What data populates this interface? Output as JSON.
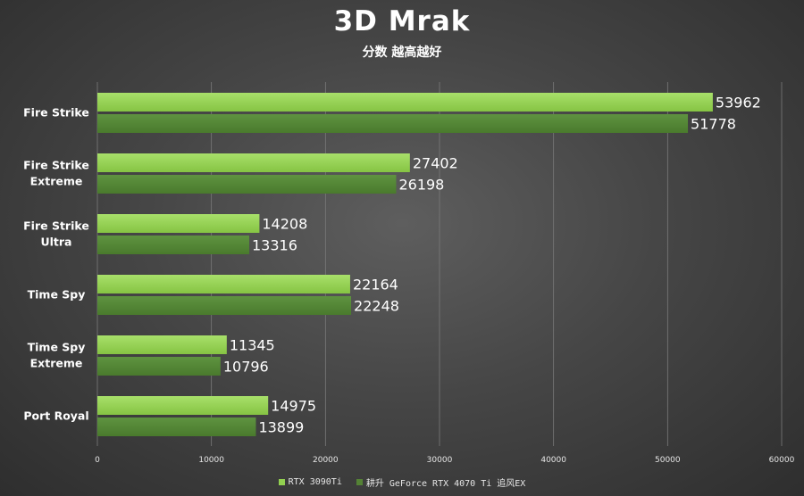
{
  "header": {
    "title": "3D Mrak",
    "subtitle": "分数 越高越好"
  },
  "chart_data": {
    "type": "bar",
    "orientation": "horizontal",
    "title": "3D Mrak",
    "subtitle": "分数 越高越好",
    "categories": [
      "Fire Strike",
      "Fire Strike\nExtreme",
      "Fire Strike\nUltra",
      "Time Spy",
      "Time Spy\nExtreme",
      "Port Royal"
    ],
    "series": [
      {
        "name": "RTX 3090Ti",
        "color": "#92d050",
        "values": [
          53962,
          27402,
          14208,
          22164,
          11345,
          14975
        ]
      },
      {
        "name": "耕升 GeForce RTX 4070 Ti 追风EX",
        "color": "#548235",
        "values": [
          51778,
          26198,
          13316,
          22248,
          10796,
          13899
        ]
      }
    ],
    "xlim": [
      0,
      60000
    ],
    "ticks": [
      0,
      10000,
      20000,
      30000,
      40000,
      50000,
      60000
    ],
    "grid": true,
    "legend_position": "bottom",
    "data_labels": true
  }
}
